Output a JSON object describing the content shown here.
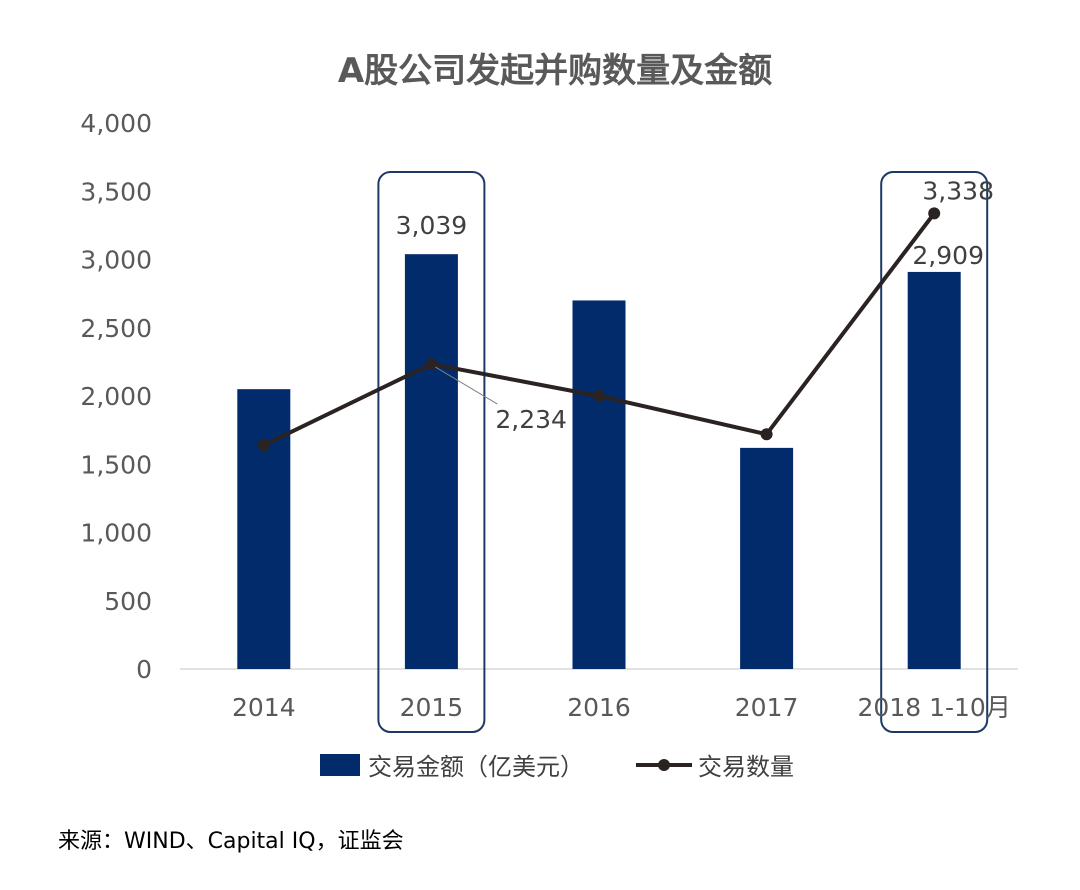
{
  "chart_data": {
    "type": "bar",
    "title": "A股公司发起并购数量及金额",
    "categories": [
      "2014",
      "2015",
      "2016",
      "2017",
      "2018 1-10月"
    ],
    "series": [
      {
        "name": "交易金额（亿美元）",
        "type": "bar",
        "values": [
          2050,
          3039,
          2700,
          1620,
          2909
        ],
        "labels": [
          "",
          "3,039",
          "",
          "",
          "2,909"
        ]
      },
      {
        "name": "交易数量",
        "type": "line",
        "values": [
          1640,
          2234,
          2000,
          1720,
          3338
        ],
        "labels": [
          "",
          "2,234",
          "",
          "",
          "3,338"
        ]
      }
    ],
    "ylim": [
      0,
      4000
    ],
    "yticks": [
      0,
      500,
      1000,
      1500,
      2000,
      2500,
      3000,
      3500,
      4000
    ],
    "ytick_labels": [
      "0",
      "500",
      "1,000",
      "1,500",
      "2,000",
      "2,500",
      "3,000",
      "3,500",
      "4,000"
    ],
    "highlighted_categories": [
      "2015",
      "2018 1-10月"
    ],
    "grid": false,
    "legend_position": "bottom",
    "xlabel": "",
    "ylabel": ""
  },
  "colors": {
    "bar": "#022b6c",
    "line": "#2b2321",
    "highlight_border": "#1d3a66",
    "axis": "#d9d9d9"
  },
  "source_note": "来源：WIND、Capital IQ，证监会"
}
